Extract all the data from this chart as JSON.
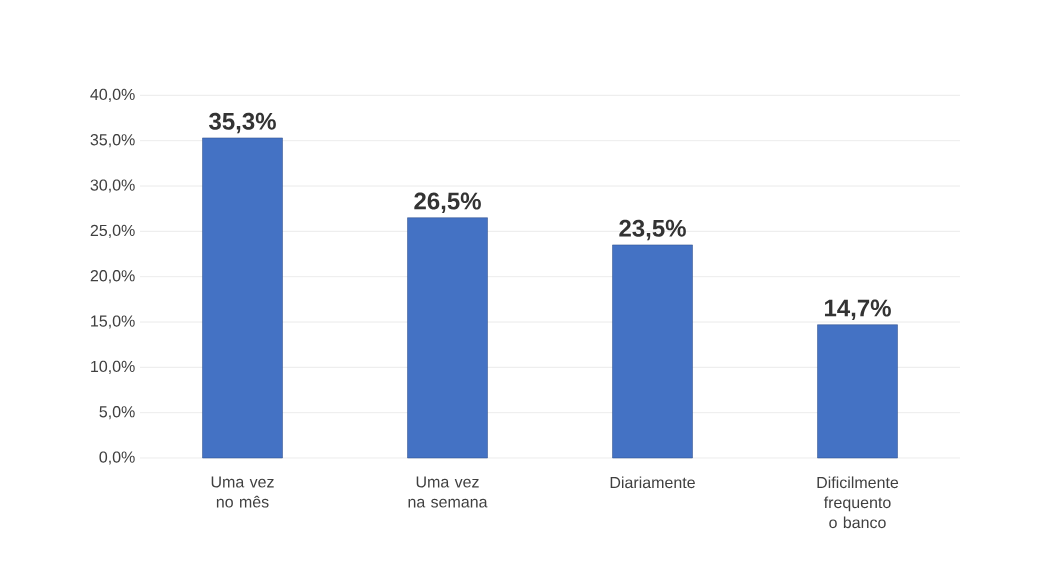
{
  "chart_data": {
    "type": "bar",
    "categories": [
      "Uma vez no mês",
      "Uma vez na semana",
      "Diariamente",
      "Dificilmente frequento o banco"
    ],
    "values": [
      35.3,
      26.5,
      23.5,
      14.7
    ],
    "color": "#4472c4",
    "value_labels": [
      "35,3%",
      "26,5%",
      "23,5%",
      "14,7%"
    ],
    "ylim": [
      0,
      40
    ],
    "yticks": [
      {
        "value": 0,
        "label": "0,0%"
      },
      {
        "value": 5,
        "label": "5,0%"
      },
      {
        "value": 10,
        "label": "10,0%"
      },
      {
        "value": 15,
        "label": "15,0%"
      },
      {
        "value": 20,
        "label": "20,0%"
      },
      {
        "value": 25,
        "label": "25,0%"
      },
      {
        "value": 30,
        "label": "30,0%"
      },
      {
        "value": 35,
        "label": "35,0%"
      },
      {
        "value": 40,
        "label": "40,0%"
      }
    ],
    "grid": "y"
  }
}
